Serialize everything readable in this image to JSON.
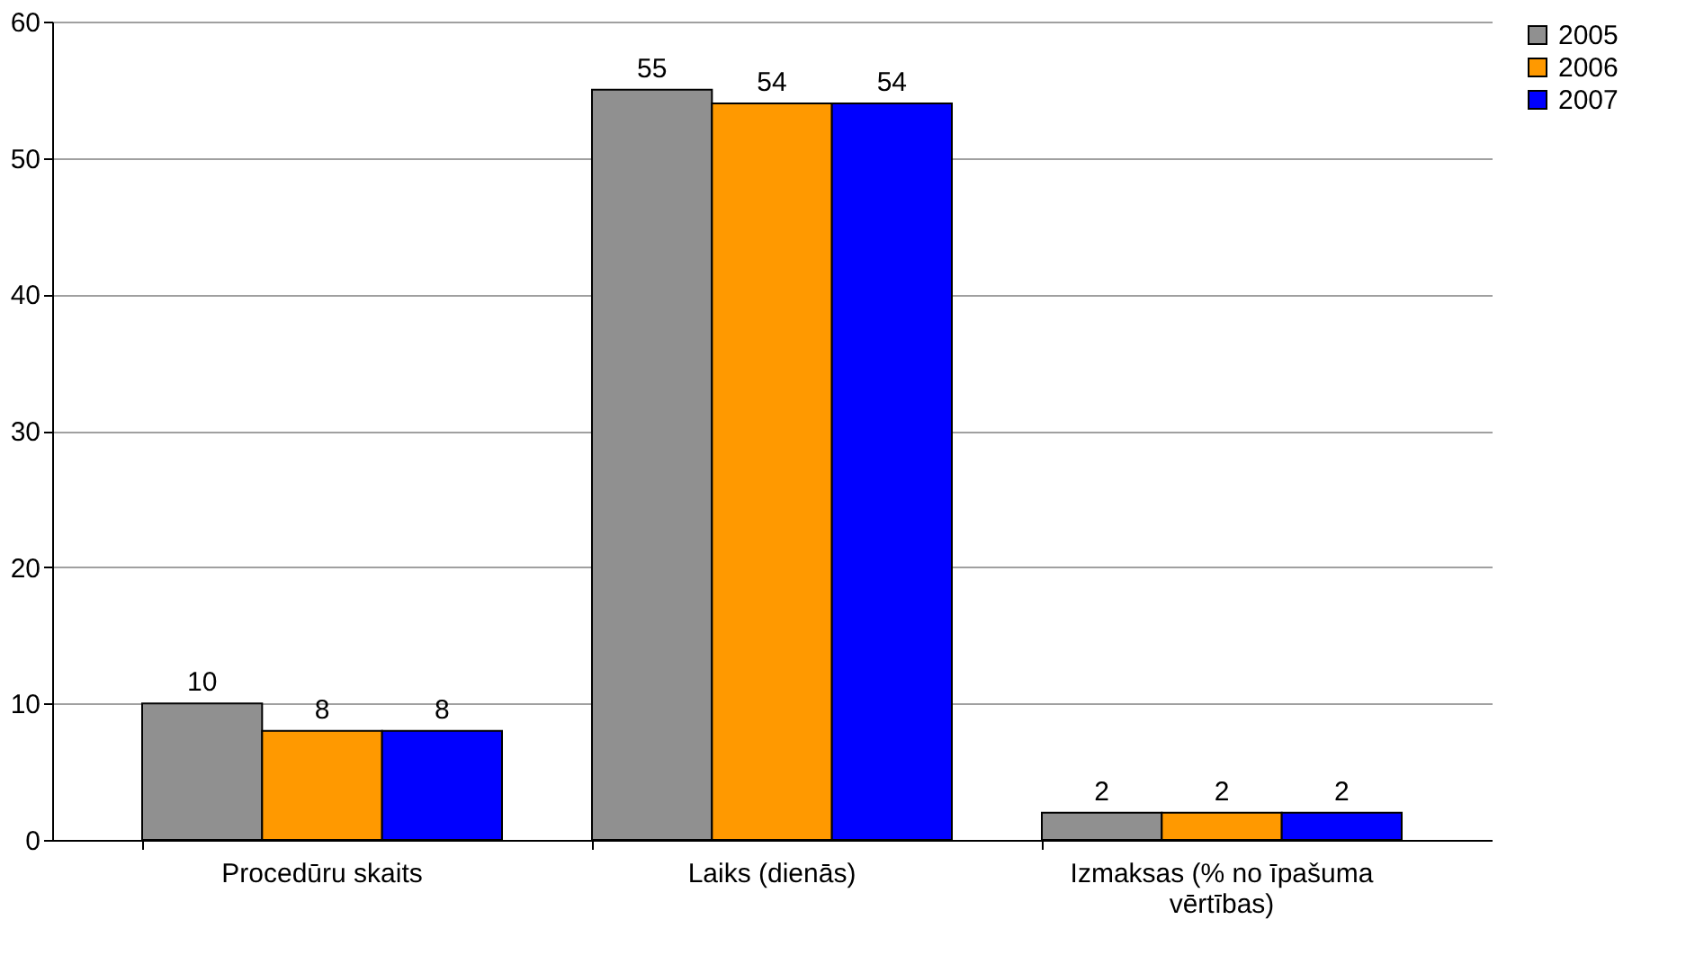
{
  "chart_data": {
    "type": "bar",
    "categories": [
      "Procedūru skaits",
      "Laiks (dienās)",
      "Izmaksas (% no īpašuma vērtības)"
    ],
    "series": [
      {
        "name": "2005",
        "color": "#909090",
        "values": [
          10,
          55,
          2
        ]
      },
      {
        "name": "2006",
        "color": "#ff9900",
        "values": [
          8,
          54,
          2
        ]
      },
      {
        "name": "2007",
        "color": "#0000ff",
        "values": [
          8,
          54,
          2
        ]
      }
    ],
    "ylim": [
      0,
      60
    ],
    "yticks": [
      0,
      10,
      20,
      30,
      40,
      50,
      60
    ],
    "grid": "y",
    "legend": "right",
    "data_labels": true
  }
}
